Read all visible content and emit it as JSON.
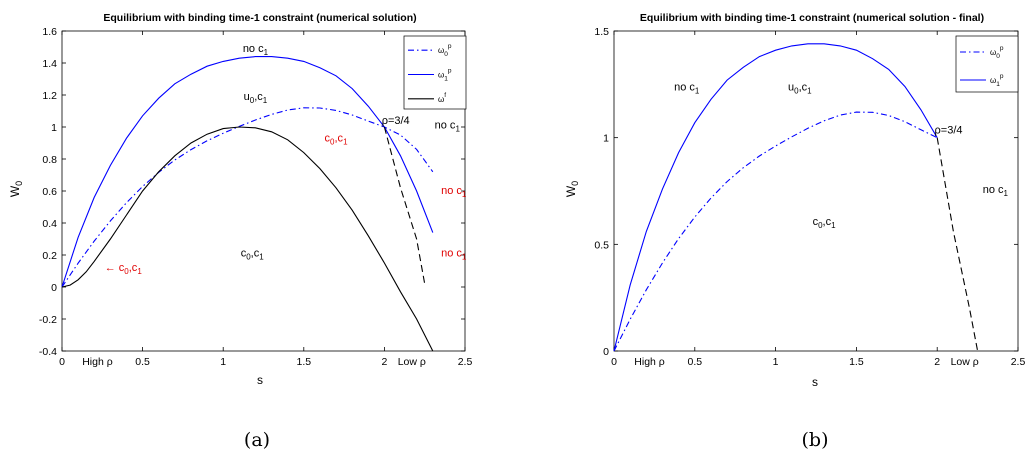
{
  "chart_data": [
    {
      "type": "line",
      "title": "Equilibrium with binding time-1 constraint (numerical solution)",
      "xlabel": "s",
      "ylabel": "W_0",
      "xlim": [
        0,
        2.5
      ],
      "ylim": [
        -0.4,
        1.6
      ],
      "x_ticks": [
        "0",
        "0.5",
        "1",
        "1.5",
        "2",
        "2.5"
      ],
      "x_tick_values": [
        0,
        0.5,
        1,
        1.5,
        2,
        2.5
      ],
      "y_ticks": [
        "-0.4",
        "-0.2",
        "0",
        "0.2",
        "0.4",
        "0.6",
        "0.8",
        "1",
        "1.2",
        "1.4",
        "1.6"
      ],
      "y_tick_values": [
        -0.4,
        -0.2,
        0,
        0.2,
        0.4,
        0.6,
        0.8,
        1,
        1.2,
        1.4,
        1.6
      ],
      "grid": false,
      "legend_position": "top-right",
      "series": [
        {
          "name": "ω0p",
          "legend_main": "ω",
          "legend_sub": "0",
          "legend_sup": "p",
          "color": "#0000ff",
          "dash": "dashdot",
          "points": [
            [
              0,
              0
            ],
            [
              0.1,
              0.149
            ],
            [
              0.2,
              0.287
            ],
            [
              0.3,
              0.413
            ],
            [
              0.4,
              0.527
            ],
            [
              0.5,
              0.628
            ],
            [
              0.6,
              0.717
            ],
            [
              0.7,
              0.794
            ],
            [
              0.8,
              0.859
            ],
            [
              0.9,
              0.914
            ],
            [
              1.0,
              0.961
            ],
            [
              1.1,
              1.004
            ],
            [
              1.2,
              1.044
            ],
            [
              1.3,
              1.079
            ],
            [
              1.4,
              1.106
            ],
            [
              1.5,
              1.12
            ],
            [
              1.6,
              1.119
            ],
            [
              1.7,
              1.104
            ],
            [
              1.8,
              1.075
            ],
            [
              1.9,
              1.037
            ],
            [
              2.0,
              1.0
            ],
            [
              2.1,
              0.95
            ],
            [
              2.2,
              0.86
            ],
            [
              2.3,
              0.72
            ]
          ]
        },
        {
          "name": "ω1p",
          "legend_main": "ω",
          "legend_sub": "1",
          "legend_sup": "p",
          "color": "#0000ff",
          "dash": "solid",
          "points": [
            [
              0,
              0
            ],
            [
              0.1,
              0.31
            ],
            [
              0.2,
              0.56
            ],
            [
              0.3,
              0.76
            ],
            [
              0.4,
              0.93
            ],
            [
              0.5,
              1.07
            ],
            [
              0.6,
              1.18
            ],
            [
              0.7,
              1.27
            ],
            [
              0.8,
              1.33
            ],
            [
              0.9,
              1.38
            ],
            [
              1.0,
              1.41
            ],
            [
              1.1,
              1.43
            ],
            [
              1.2,
              1.44
            ],
            [
              1.3,
              1.44
            ],
            [
              1.4,
              1.43
            ],
            [
              1.5,
              1.41
            ],
            [
              1.6,
              1.37
            ],
            [
              1.7,
              1.32
            ],
            [
              1.8,
              1.24
            ],
            [
              1.9,
              1.13
            ],
            [
              2.0,
              1.0
            ],
            [
              2.1,
              0.82
            ],
            [
              2.2,
              0.6
            ],
            [
              2.3,
              0.34
            ]
          ]
        },
        {
          "name": "ωf",
          "legend_main": "ω",
          "legend_sub": "",
          "legend_sup": "f",
          "color": "#000000",
          "dash": "solid",
          "points": [
            [
              0,
              0
            ],
            [
              0.05,
              0.012
            ],
            [
              0.1,
              0.045
            ],
            [
              0.15,
              0.095
            ],
            [
              0.2,
              0.16
            ],
            [
              0.3,
              0.3
            ],
            [
              0.4,
              0.45
            ],
            [
              0.5,
              0.6
            ],
            [
              0.6,
              0.72
            ],
            [
              0.7,
              0.82
            ],
            [
              0.8,
              0.9
            ],
            [
              0.9,
              0.955
            ],
            [
              1.0,
              0.99
            ],
            [
              1.1,
              1.0
            ],
            [
              1.2,
              0.995
            ],
            [
              1.3,
              0.97
            ],
            [
              1.4,
              0.92
            ],
            [
              1.5,
              0.84
            ],
            [
              1.6,
              0.74
            ],
            [
              1.7,
              0.62
            ],
            [
              1.8,
              0.48
            ],
            [
              1.9,
              0.32
            ],
            [
              2.0,
              0.15
            ],
            [
              2.1,
              -0.03
            ],
            [
              2.2,
              -0.2
            ],
            [
              2.3,
              -0.4
            ]
          ]
        },
        {
          "name": "",
          "color": "#000000",
          "dash": "dashed",
          "points": [
            [
              2.0,
              1.0
            ],
            [
              2.1,
              0.62
            ],
            [
              2.2,
              0.3
            ],
            [
              2.25,
              0.02
            ]
          ]
        }
      ],
      "annotations": [
        {
          "text_main": "no c",
          "text_sub": "1",
          "x": 1.2,
          "y": 1.47,
          "color": "#000000"
        },
        {
          "text_main": "u",
          "text_sub": "0",
          "text_main2": ",c",
          "text_sub2": "1",
          "x": 1.2,
          "y": 1.17,
          "color": "#000000"
        },
        {
          "text_main": "c",
          "text_sub": "0",
          "text_main2": ",c",
          "text_sub2": "1",
          "x": 1.7,
          "y": 0.91,
          "color": "#e00000"
        },
        {
          "text_main": "ρ=3/4",
          "x": 2.07,
          "y": 1.02,
          "color": "#000000",
          "small": true
        },
        {
          "text_main": "no c",
          "text_sub": "1",
          "x": 2.39,
          "y": 0.99,
          "color": "#000000"
        },
        {
          "text_main": "no c",
          "text_sub": "1",
          "x": 2.43,
          "y": 0.58,
          "color": "#e00000"
        },
        {
          "text_main": "no c",
          "text_sub": "1",
          "x": 2.43,
          "y": 0.19,
          "color": "#e00000"
        },
        {
          "text_main": "c",
          "text_sub": "0",
          "text_main2": ",c",
          "text_sub2": "1",
          "x": 1.18,
          "y": 0.19,
          "color": "#000000"
        },
        {
          "text_main": "← c",
          "text_sub": "0",
          "text_main2": ",c",
          "text_sub2": "1",
          "x": 0.38,
          "y": 0.1,
          "color": "#e00000"
        }
      ],
      "x_range_labels": [
        {
          "text": "High ρ",
          "x": 0.22
        },
        {
          "text": "Low ρ",
          "x": 2.17
        }
      ],
      "caption": "(a)"
    },
    {
      "type": "line",
      "title": "Equilibrium with binding time-1 constraint (numerical solution - final)",
      "xlabel": "s",
      "ylabel": "W_0",
      "xlim": [
        0,
        2.5
      ],
      "ylim": [
        0,
        1.5
      ],
      "x_ticks": [
        "0",
        "0.5",
        "1",
        "1.5",
        "2",
        "2.5"
      ],
      "x_tick_values": [
        0,
        0.5,
        1,
        1.5,
        2,
        2.5
      ],
      "y_ticks": [
        "0",
        "0.5",
        "1",
        "1.5"
      ],
      "y_tick_values": [
        0,
        0.5,
        1,
        1.5
      ],
      "grid": false,
      "legend_position": "top-right",
      "series": [
        {
          "name": "ω0p",
          "legend_main": "ω",
          "legend_sub": "0",
          "legend_sup": "p",
          "color": "#0000ff",
          "dash": "dashdot",
          "points": [
            [
              0,
              0
            ],
            [
              0.1,
              0.149
            ],
            [
              0.2,
              0.287
            ],
            [
              0.3,
              0.413
            ],
            [
              0.4,
              0.527
            ],
            [
              0.5,
              0.628
            ],
            [
              0.6,
              0.717
            ],
            [
              0.7,
              0.794
            ],
            [
              0.8,
              0.859
            ],
            [
              0.9,
              0.914
            ],
            [
              1.0,
              0.961
            ],
            [
              1.1,
              1.004
            ],
            [
              1.2,
              1.044
            ],
            [
              1.3,
              1.079
            ],
            [
              1.4,
              1.106
            ],
            [
              1.5,
              1.12
            ],
            [
              1.6,
              1.119
            ],
            [
              1.7,
              1.104
            ],
            [
              1.8,
              1.075
            ],
            [
              1.9,
              1.037
            ],
            [
              2.0,
              1.0
            ]
          ]
        },
        {
          "name": "ω1p",
          "legend_main": "ω",
          "legend_sub": "1",
          "legend_sup": "p",
          "color": "#0000ff",
          "dash": "solid",
          "points": [
            [
              0,
              0
            ],
            [
              0.1,
              0.31
            ],
            [
              0.2,
              0.56
            ],
            [
              0.3,
              0.76
            ],
            [
              0.4,
              0.93
            ],
            [
              0.5,
              1.07
            ],
            [
              0.6,
              1.18
            ],
            [
              0.7,
              1.27
            ],
            [
              0.8,
              1.33
            ],
            [
              0.9,
              1.38
            ],
            [
              1.0,
              1.41
            ],
            [
              1.1,
              1.43
            ],
            [
              1.2,
              1.44
            ],
            [
              1.3,
              1.44
            ],
            [
              1.4,
              1.43
            ],
            [
              1.5,
              1.41
            ],
            [
              1.6,
              1.37
            ],
            [
              1.7,
              1.32
            ],
            [
              1.8,
              1.24
            ],
            [
              1.9,
              1.13
            ],
            [
              2.0,
              1.0
            ]
          ]
        },
        {
          "name": "",
          "color": "#000000",
          "dash": "dashed",
          "points": [
            [
              2.0,
              1.0
            ],
            [
              2.1,
              0.56
            ],
            [
              2.2,
              0.2
            ],
            [
              2.25,
              0.0
            ]
          ]
        }
      ],
      "annotations": [
        {
          "text_main": "no c",
          "text_sub": "1",
          "x": 0.45,
          "y": 1.22,
          "color": "#000000"
        },
        {
          "text_main": "u",
          "text_sub": "0",
          "text_main2": ",c",
          "text_sub2": "1",
          "x": 1.15,
          "y": 1.22,
          "color": "#000000"
        },
        {
          "text_main": "ρ=3/4",
          "x": 2.07,
          "y": 1.02,
          "color": "#000000",
          "small": true
        },
        {
          "text_main": "no c",
          "text_sub": "1",
          "x": 2.36,
          "y": 0.74,
          "color": "#000000"
        },
        {
          "text_main": "c",
          "text_sub": "0",
          "text_main2": ",c",
          "text_sub2": "1",
          "x": 1.3,
          "y": 0.59,
          "color": "#000000"
        }
      ],
      "x_range_labels": [
        {
          "text": "High ρ",
          "x": 0.22
        },
        {
          "text": "Low ρ",
          "x": 2.17
        }
      ],
      "caption": "(b)"
    }
  ]
}
